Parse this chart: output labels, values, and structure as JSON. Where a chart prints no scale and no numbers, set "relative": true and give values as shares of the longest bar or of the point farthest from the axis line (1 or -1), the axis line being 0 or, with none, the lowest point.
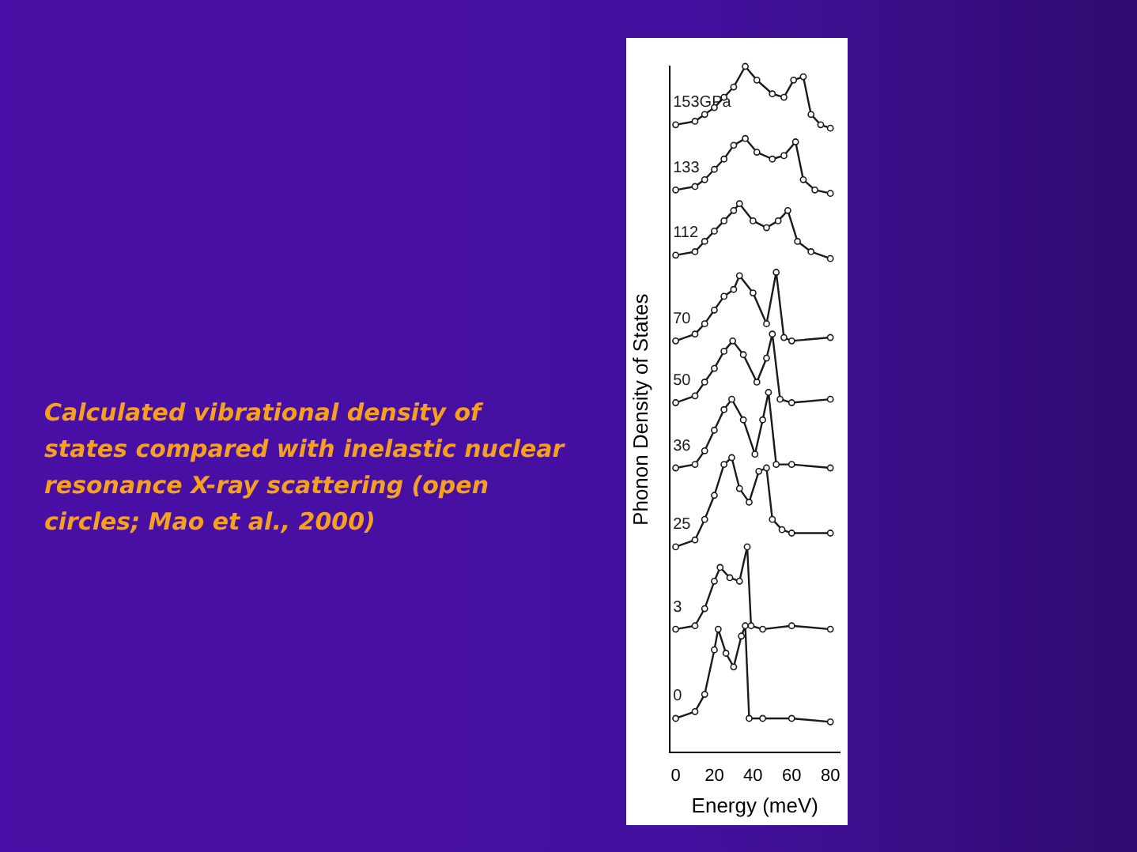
{
  "chart_data": {
    "type": "line",
    "relative": true,
    "xlabel": "Energy (meV)",
    "ylabel": "Phonon Density of States",
    "xlim": [
      -3,
      85
    ],
    "xticks": [
      0,
      20,
      40,
      60,
      80
    ],
    "legend": false,
    "grid": false,
    "marker": "circle",
    "line_style": "solid",
    "annotations": [
      "Calculated vibrational density of states compared with inelastic nuclear resonance X-ray scattering (open circles; Mao et al., 2000)"
    ],
    "series": [
      {
        "name": "153GPa",
        "color": "#1a1a1a",
        "x": [
          0,
          10,
          15,
          20,
          25,
          30,
          36,
          42,
          50,
          56,
          61,
          66,
          70,
          75,
          80
        ],
        "values": [
          0.915,
          0.92,
          0.93,
          0.94,
          0.955,
          0.97,
          1.0,
          0.98,
          0.96,
          0.955,
          0.98,
          0.985,
          0.93,
          0.915,
          0.91
        ]
      },
      {
        "name": "133",
        "color": "#1a1a1a",
        "x": [
          0,
          10,
          15,
          20,
          25,
          30,
          36,
          42,
          50,
          56,
          62,
          66,
          72,
          80
        ],
        "values": [
          0.82,
          0.825,
          0.835,
          0.85,
          0.865,
          0.885,
          0.895,
          0.875,
          0.865,
          0.87,
          0.89,
          0.835,
          0.82,
          0.815
        ]
      },
      {
        "name": "112",
        "color": "#1a1a1a",
        "x": [
          0,
          10,
          15,
          20,
          25,
          30,
          33,
          40,
          47,
          53,
          58,
          63,
          70,
          80
        ],
        "values": [
          0.725,
          0.73,
          0.745,
          0.76,
          0.775,
          0.79,
          0.8,
          0.775,
          0.765,
          0.775,
          0.79,
          0.745,
          0.73,
          0.72
        ]
      },
      {
        "name": "70",
        "color": "#1a1a1a",
        "x": [
          0,
          10,
          15,
          20,
          25,
          30,
          33,
          40,
          47,
          52,
          56,
          60,
          80
        ],
        "values": [
          0.6,
          0.61,
          0.625,
          0.645,
          0.665,
          0.675,
          0.695,
          0.67,
          0.625,
          0.7,
          0.605,
          0.6,
          0.605
        ]
      },
      {
        "name": "50",
        "color": "#1a1a1a",
        "x": [
          0,
          10,
          15,
          20,
          25,
          29.5,
          35,
          42,
          47,
          50,
          54,
          60,
          80
        ],
        "values": [
          0.51,
          0.52,
          0.54,
          0.56,
          0.585,
          0.6,
          0.58,
          0.54,
          0.575,
          0.61,
          0.515,
          0.51,
          0.515
        ]
      },
      {
        "name": "36",
        "color": "#1a1a1a",
        "x": [
          0,
          10,
          15,
          20,
          25,
          29,
          35,
          41,
          45,
          48,
          52,
          60,
          80
        ],
        "values": [
          0.415,
          0.42,
          0.44,
          0.47,
          0.5,
          0.515,
          0.485,
          0.435,
          0.485,
          0.525,
          0.42,
          0.42,
          0.415
        ]
      },
      {
        "name": "25",
        "color": "#1a1a1a",
        "x": [
          0,
          10,
          15,
          20,
          25,
          29,
          33,
          38,
          43,
          47,
          50,
          55,
          60,
          80
        ],
        "values": [
          0.3,
          0.31,
          0.34,
          0.375,
          0.42,
          0.43,
          0.385,
          0.365,
          0.41,
          0.415,
          0.34,
          0.325,
          0.32,
          0.32
        ]
      },
      {
        "name": "3",
        "color": "#1a1a1a",
        "x": [
          0,
          10,
          15,
          20,
          23,
          28,
          33,
          37,
          39,
          45,
          60,
          80
        ],
        "values": [
          0.18,
          0.185,
          0.21,
          0.25,
          0.27,
          0.255,
          0.25,
          0.3,
          0.185,
          0.18,
          0.185,
          0.18
        ]
      },
      {
        "name": "0",
        "color": "#1a1a1a",
        "x": [
          0,
          10,
          15,
          20,
          22,
          26,
          30,
          34,
          36,
          38,
          45,
          60,
          80
        ],
        "values": [
          0.05,
          0.06,
          0.085,
          0.15,
          0.18,
          0.145,
          0.125,
          0.17,
          0.185,
          0.05,
          0.05,
          0.05,
          0.045
        ]
      }
    ]
  }
}
